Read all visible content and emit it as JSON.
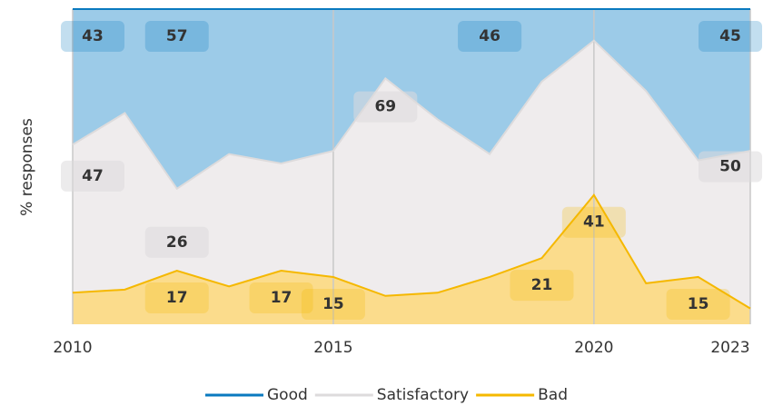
{
  "chart_data": {
    "type": "stacked_area",
    "y_label": "% responses",
    "x": [
      2010,
      2011,
      2012,
      2013,
      2014,
      2015,
      2016,
      2017,
      2018,
      2019,
      2020,
      2021,
      2022,
      2023
    ],
    "xlim": [
      2010,
      2023
    ],
    "xticks": [
      2010,
      2015,
      2020,
      2023
    ],
    "ylim": [
      0,
      100
    ],
    "series": [
      {
        "name": "Bad",
        "color": "#f5b800",
        "fill": "#fbdc8c",
        "values": [
          10,
          11,
          17,
          12,
          17,
          15,
          9,
          10,
          15,
          21,
          41,
          13,
          15,
          5
        ],
        "value_labels": [
          null,
          null,
          17,
          null,
          17,
          15,
          null,
          null,
          null,
          21,
          41,
          null,
          15,
          null
        ]
      },
      {
        "name": "Satisfactory",
        "color": "#dddbdc",
        "fill": "#efeced",
        "values": [
          47,
          56,
          26,
          42,
          34,
          40,
          69,
          55,
          39,
          56,
          49,
          61,
          37,
          50
        ],
        "value_labels": [
          47,
          null,
          26,
          null,
          null,
          null,
          69,
          null,
          null,
          null,
          null,
          null,
          null,
          50
        ]
      },
      {
        "name": "Good",
        "color": "#0a7abf",
        "fill": "#9ccbe8",
        "values": [
          43,
          33,
          57,
          46,
          49,
          45,
          22,
          35,
          46,
          23,
          10,
          26,
          48,
          45
        ],
        "value_labels": [
          43,
          null,
          57,
          null,
          null,
          null,
          null,
          null,
          46,
          null,
          null,
          null,
          null,
          45
        ]
      }
    ],
    "legend": "bottom",
    "grid": "x"
  }
}
